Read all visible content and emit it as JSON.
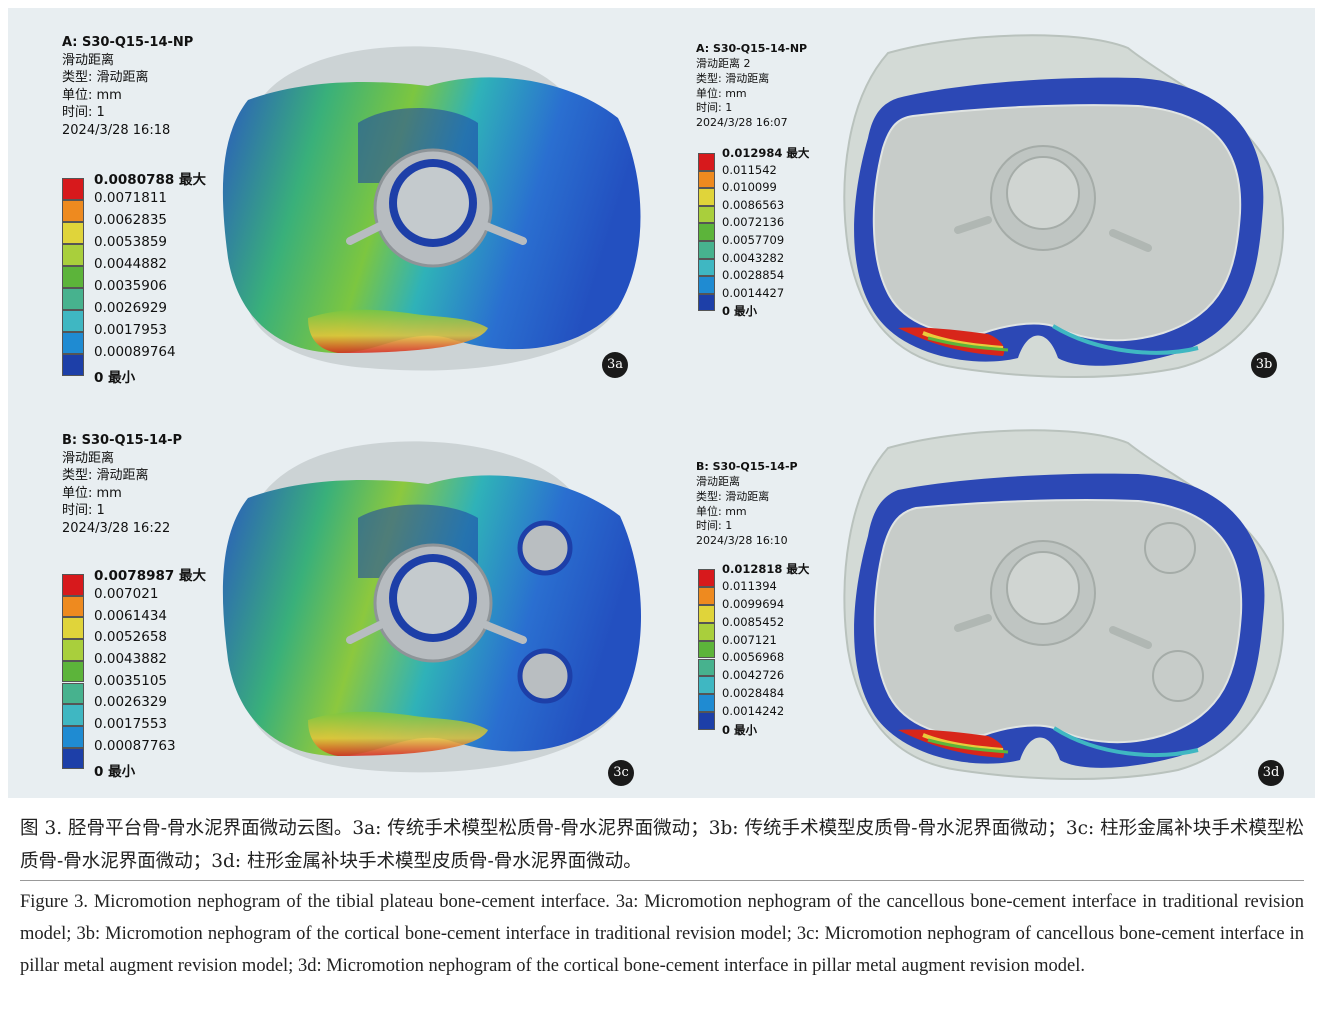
{
  "panels": [
    {
      "id": "3a",
      "title": "A: S30-Q15-14-NP",
      "lines": [
        "滑动距离",
        "类型: 滑动距离",
        "单位: mm",
        "时间: 1",
        "2024/3/28 16:18"
      ],
      "legend": [
        "0.0080788 最大",
        "0.0071811",
        "0.0062835",
        "0.0053859",
        "0.0044882",
        "0.0035906",
        "0.0026929",
        "0.0017953",
        "0.00089764",
        "0 最小"
      ],
      "badge": "3a"
    },
    {
      "id": "3b",
      "title": "A: S30-Q15-14-NP",
      "lines": [
        "滑动距离 2",
        "类型: 滑动距离",
        "单位: mm",
        "时间: 1",
        "2024/3/28 16:07"
      ],
      "legend": [
        "0.012984 最大",
        "0.011542",
        "0.010099",
        "0.0086563",
        "0.0072136",
        "0.0057709",
        "0.0043282",
        "0.0028854",
        "0.0014427",
        "0 最小"
      ],
      "badge": "3b"
    },
    {
      "id": "3c",
      "title": "B: S30-Q15-14-P",
      "lines": [
        "滑动距离",
        "类型: 滑动距离",
        "单位: mm",
        "时间: 1",
        "2024/3/28 16:22"
      ],
      "legend": [
        "0.0078987 最大",
        "0.007021",
        "0.0061434",
        "0.0052658",
        "0.0043882",
        "0.0035105",
        "0.0026329",
        "0.0017553",
        "0.00087763",
        "0 最小"
      ],
      "badge": "3c"
    },
    {
      "id": "3d",
      "title": "B: S30-Q15-14-P",
      "lines": [
        "滑动距离",
        "类型: 滑动距离",
        "单位: mm",
        "时间: 1",
        "2024/3/28 16:10"
      ],
      "legend": [
        "0.012818 最大",
        "0.011394",
        "0.0099694",
        "0.0085452",
        "0.007121",
        "0.0056968",
        "0.0042726",
        "0.0028484",
        "0.0014242",
        "0 最小"
      ],
      "badge": "3d"
    }
  ],
  "legend_colors": [
    "#d7191c",
    "#ee8a1f",
    "#e0d43a",
    "#a9cf3c",
    "#5cb43a",
    "#47b28e",
    "#3fb7c2",
    "#1f8bd2",
    "#1d3fa8"
  ],
  "caption_cn": "图 3. 胫骨平台骨-骨水泥界面微动云图。3a: 传统手术模型松质骨-骨水泥界面微动；3b: 传统手术模型皮质骨-骨水泥界面微动；3c: 柱形金属补块手术模型松质骨-骨水泥界面微动；3d: 柱形金属补块手术模型皮质骨-骨水泥界面微动。",
  "caption_en": "Figure 3. Micromotion nephogram of the tibial plateau bone-cement interface. 3a: Micromotion nephogram of the cancellous bone-cement interface in traditional revision model; 3b: Micromotion nephogram of the cortical bone-cement interface in traditional revision model; 3c: Micromotion nephogram of cancellous bone-cement interface in pillar metal augment revision model; 3d: Micromotion nephogram of the cortical bone-cement interface in pillar metal augment revision model."
}
